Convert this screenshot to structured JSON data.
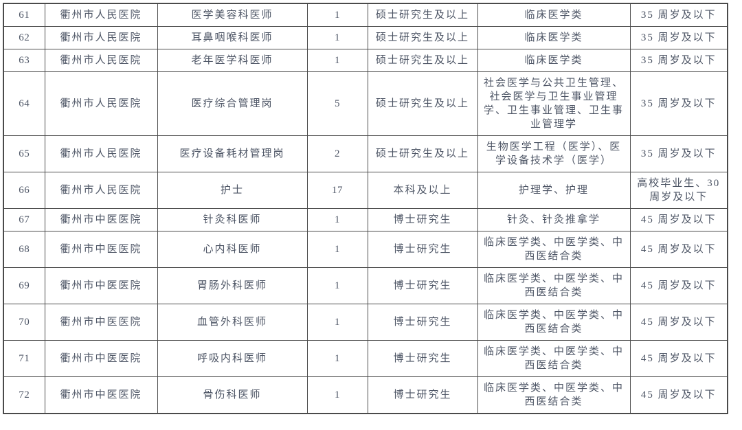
{
  "page": {
    "background": "#ffffff",
    "text_color": "#4d5565",
    "border_color": "#4a4a4a"
  },
  "table": {
    "description": "recruitment-positions-table-rows-61-72",
    "rows": [
      {
        "no": "61",
        "hospital": "衢州市人民医院",
        "position": "医学美容科医师",
        "count": "1",
        "education": "硕士研究生及以上",
        "major": "临床医学类",
        "age": "35 周岁及以下"
      },
      {
        "no": "62",
        "hospital": "衢州市人民医院",
        "position": "耳鼻咽喉科医师",
        "count": "1",
        "education": "硕士研究生及以上",
        "major": "临床医学类",
        "age": "35 周岁及以下"
      },
      {
        "no": "63",
        "hospital": "衢州市人民医院",
        "position": "老年医学科医师",
        "count": "1",
        "education": "硕士研究生及以上",
        "major": "临床医学类",
        "age": "35 周岁及以下"
      },
      {
        "no": "64",
        "hospital": "衢州市人民医院",
        "position": "医疗综合管理岗",
        "count": "5",
        "education": "硕士研究生及以上",
        "major": "社会医学与公共卫生管理、社会医学与卫生事业管理学、卫生事业管理、卫生事业管理学",
        "age": "35 周岁及以下"
      },
      {
        "no": "65",
        "hospital": "衢州市人民医院",
        "position": "医疗设备耗材管理岗",
        "count": "2",
        "education": "硕士研究生及以上",
        "major": "生物医学工程（医学）、医学设备技术学（医学）",
        "age": "35 周岁及以下"
      },
      {
        "no": "66",
        "hospital": "衢州市人民医院",
        "position": "护士",
        "count": "17",
        "education": "本科及以上",
        "major": "护理学、护理",
        "age": "高校毕业生、30 周岁及以下"
      },
      {
        "no": "67",
        "hospital": "衢州市中医医院",
        "position": "针灸科医师",
        "count": "1",
        "education": "博士研究生",
        "major": "针灸、针灸推拿学",
        "age": "45 周岁及以下"
      },
      {
        "no": "68",
        "hospital": "衢州市中医医院",
        "position": "心内科医师",
        "count": "1",
        "education": "博士研究生",
        "major": "临床医学类、中医学类、中西医结合类",
        "age": "45 周岁及以下"
      },
      {
        "no": "69",
        "hospital": "衢州市中医医院",
        "position": "胃肠外科医师",
        "count": "1",
        "education": "博士研究生",
        "major": "临床医学类、中医学类、中西医结合类",
        "age": "45 周岁及以下"
      },
      {
        "no": "70",
        "hospital": "衢州市中医医院",
        "position": "血管外科医师",
        "count": "1",
        "education": "博士研究生",
        "major": "临床医学类、中医学类、中西医结合类",
        "age": "45 周岁及以下"
      },
      {
        "no": "71",
        "hospital": "衢州市中医医院",
        "position": "呼吸内科医师",
        "count": "1",
        "education": "博士研究生",
        "major": "临床医学类、中医学类、中西医结合类",
        "age": "45 周岁及以下"
      },
      {
        "no": "72",
        "hospital": "衢州市中医医院",
        "position": "骨伤科医师",
        "count": "1",
        "education": "博士研究生",
        "major": "临床医学类、中医学类、中西医结合类",
        "age": "45 周岁及以下"
      }
    ]
  }
}
